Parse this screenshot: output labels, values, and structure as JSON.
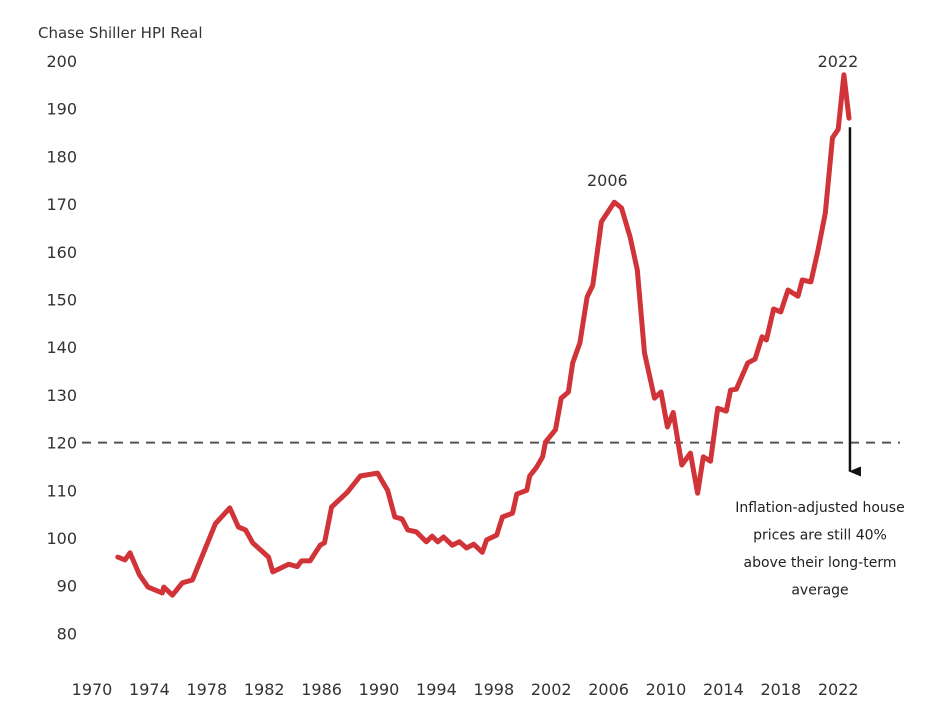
{
  "chart_data": {
    "type": "line",
    "title": "Chase Shiller HPI Real",
    "xlabel": "",
    "ylabel": "Chase Shiller HPI Real",
    "xlim": [
      1970,
      2023
    ],
    "ylim": [
      80,
      200
    ],
    "grid": false,
    "x_ticks": [
      "1970",
      "1974",
      "1978",
      "1982",
      "1986",
      "1990",
      "1994",
      "1998",
      "2002",
      "2006",
      "2010",
      "2014",
      "2018",
      "2022"
    ],
    "y_ticks": [
      "200",
      "190",
      "180",
      "170",
      "160",
      "150",
      "140",
      "130",
      "120",
      "110",
      "100",
      "90",
      "80"
    ],
    "series": [
      {
        "name": "Chase Shiller HPI Real",
        "color": "#d13438",
        "x": [
          1971.8,
          1972.3,
          1972.65,
          1973.3,
          1973.9,
          1974.9,
          1975.0,
          1975.6,
          1976.3,
          1977.0,
          1978.6,
          1979.6,
          1980.2,
          1980.7,
          1981.2,
          1982.3,
          1982.6,
          1983.7,
          1984.3,
          1984.6,
          1985.2,
          1985.9,
          1986.2,
          1986.7,
          1987.8,
          1988.7,
          1989.9,
          1990.3,
          1990.6,
          1991.1,
          1991.6,
          1992.0,
          1992.6,
          1993.3,
          1993.7,
          1994.1,
          1994.5,
          1995.1,
          1995.6,
          1996.1,
          1996.6,
          1997.2,
          1997.5,
          1998.2,
          1998.6,
          1999.3,
          1999.6,
          2000.3,
          2000.5,
          2001.0,
          2001.4,
          2001.6,
          2002.3,
          2002.7,
          2003.2,
          2003.5,
          2004.0,
          2004.5,
          2004.9,
          2005.5,
          2006.4,
          2006.9,
          2007.5,
          2008.0,
          2008.5,
          2009.2,
          2009.65,
          2010.1,
          2010.5,
          2011.1,
          2011.7,
          2012.2,
          2012.6,
          2013.1,
          2013.6,
          2014.2,
          2014.5,
          2014.9,
          2015.7,
          2016.2,
          2016.7,
          2017.0,
          2017.5,
          2018.0,
          2018.5,
          2019.2,
          2019.5,
          2020.1,
          2020.6,
          2021.1,
          2021.6,
          2022.0,
          2022.4,
          2022.75
        ],
        "values": [
          96.0,
          95.4,
          96.9,
          92.3,
          89.7,
          88.5,
          89.7,
          88.0,
          90.6,
          91.2,
          103.0,
          106.3,
          102.3,
          101.7,
          99.0,
          96.0,
          92.9,
          94.5,
          94.0,
          95.2,
          95.2,
          98.5,
          99.0,
          106.5,
          109.6,
          113.0,
          113.6,
          111.5,
          110.0,
          104.4,
          104.0,
          101.7,
          101.3,
          99.2,
          100.4,
          99.2,
          100.2,
          98.5,
          99.2,
          97.9,
          98.7,
          97.0,
          99.6,
          100.6,
          104.4,
          105.2,
          109.2,
          110.0,
          113.0,
          114.9,
          117.0,
          120.1,
          122.7,
          129.3,
          130.6,
          136.7,
          140.9,
          150.5,
          153.0,
          166.3,
          170.4,
          169.2,
          163.1,
          156.2,
          138.8,
          129.3,
          130.6,
          123.3,
          126.3,
          115.3,
          117.8,
          109.4,
          117.0,
          116.1,
          127.2,
          126.6,
          131.0,
          131.2,
          136.7,
          137.5,
          142.2,
          141.5,
          148.0,
          147.4,
          152.0,
          150.7,
          154.1,
          153.7,
          160.4,
          168.1,
          183.9,
          185.7,
          197.1,
          188.0
        ]
      }
    ],
    "reference_lines": [
      {
        "name": "long-term average",
        "value": 120,
        "style": "dashed",
        "color": "#555555"
      }
    ],
    "annotations": [
      {
        "text": "2006",
        "x": 2006.4,
        "y": 170.4
      },
      {
        "text": "2022",
        "x": 2022.4,
        "y": 197.1
      },
      {
        "text": "Inflation-adjusted house prices are still 40% above their long-term average",
        "lines": [
          "Inflation-adjusted house",
          "prices are still 40%",
          "above their long-term",
          "average"
        ],
        "arrow_from": 188,
        "arrow_to": 115,
        "arrow_x": 2022.75
      }
    ]
  }
}
